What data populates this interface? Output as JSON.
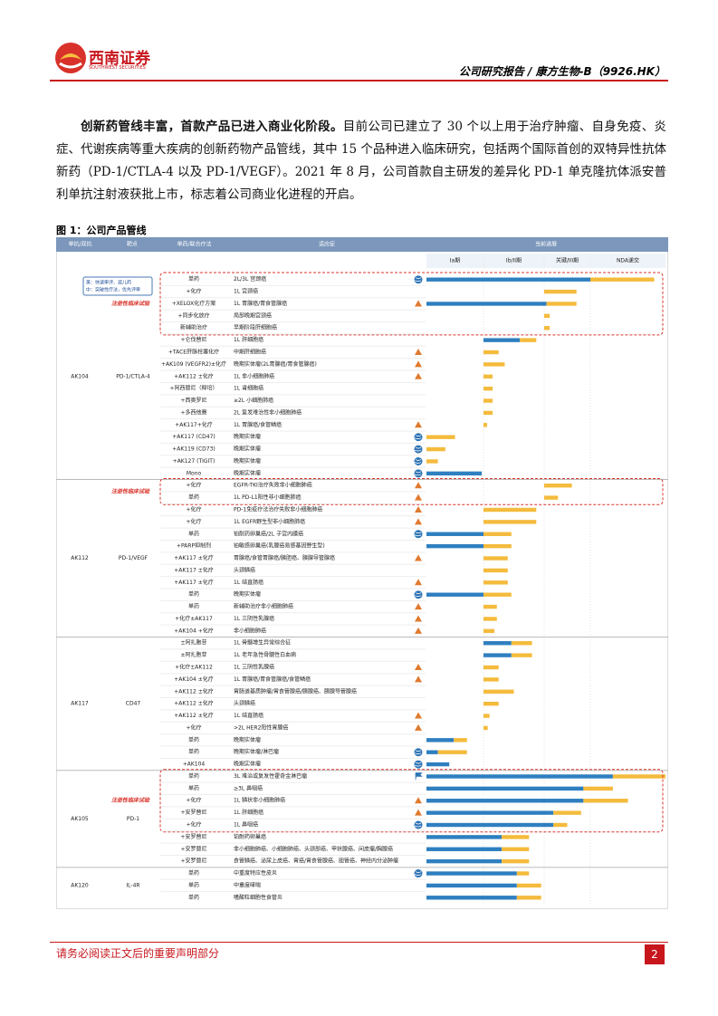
{
  "header": {
    "logo_cn": "西南证券",
    "logo_en": "SOUTHWEST SECURITIES",
    "report": "公司研究报告 / 康方生物-B（9926.HK）"
  },
  "intro": {
    "lead": "创新药管线丰富，首款产品已进入商业化阶段。",
    "text": "目前公司已建立了 30 个以上用于治疗肿瘤、自身免疫、炎症、代谢疾病等重大疾病的创新药物产品管线，其中 15 个品种进入临床研究，包括两个国际首创的双特异性抗体新药（PD-1/CTLA-4 以及 PD-1/VEGF）。2021 年 8 月，公司首款自主研发的差异化 PD-1 单克隆抗体派安普利单抗注射液获批上市，标志着公司商业化进程的开启。"
  },
  "figure": {
    "title": "图 1：公司产品管线",
    "columns": [
      "单抗/双抗",
      "靶点",
      "单药/联合疗法",
      "适应症",
      "当前进展"
    ],
    "phases": [
      "Ia期",
      "Ib/II期",
      "关键/III期",
      "NDA递交"
    ],
    "groups": [
      {
        "name": "AK104",
        "target": "PD-1/CTLA-4",
        "note": [
          "美：快速审评、孤儿药",
          "中：突破性疗法，优先评审"
        ],
        "registration_label": "注册性临床试验",
        "rows": [
          {
            "therapy": "单药",
            "indication": "2L/3L 宫颈癌",
            "icon": "globe",
            "registrational": true,
            "progress": [
              0,
              3,
              3.85
            ]
          },
          {
            "therapy": "+化疗",
            "indication": "1L 宫颈癌",
            "registrational": true,
            "progress": [
              2,
              2,
              2.7
            ]
          },
          {
            "therapy": "+XELOX化疗方案",
            "indication": "1L 胃腺癌/胃食管腺癌",
            "icon": "triangle",
            "registrational": true,
            "progress": [
              0,
              2.05,
              2.7
            ]
          },
          {
            "therapy": "+同步化放疗",
            "indication": "局部晚期宫颈癌",
            "registrational": true,
            "progress": [
              2,
              2,
              2.12
            ]
          },
          {
            "therapy": "新辅助治疗",
            "indication": "早期阶段肝细胞癌",
            "registrational": true,
            "progress": [
              2,
              2,
              2.12
            ]
          },
          {
            "therapy": "+仑伐替尼",
            "indication": "1L 肝细胞癌",
            "progress": [
              1,
              1.6,
              1.87
            ]
          },
          {
            "therapy": "+TACE肝脉栓塞化疗",
            "indication": "中期肝细胞癌",
            "icon": "triangle",
            "progress": [
              1,
              1,
              1.25
            ]
          },
          {
            "therapy": "+AK109 (VEGFR2)±化疗",
            "indication": "晚期实体瘤(2L胃腺癌/胃食管腺癌)",
            "icon": "triangle",
            "progress": [
              1,
              1,
              1.35
            ]
          },
          {
            "therapy": "+AK112 ±化疗",
            "indication": "1L 非小细胞肺癌",
            "icon": "triangle",
            "progress": [
              1,
              1,
              1.15
            ]
          },
          {
            "therapy": "+阿西替尼（释培）",
            "indication": "1L 肾细胞癌",
            "progress": [
              1,
              1,
              1.15
            ]
          },
          {
            "therapy": "+西奥罗尼",
            "indication": "≥2L 小细胞肺癌",
            "progress": [
              1,
              1,
              1.15
            ]
          },
          {
            "therapy": "+多西他赛",
            "indication": "2L 复发难治性非小细胞肺癌",
            "progress": [
              1,
              1,
              1.15
            ]
          },
          {
            "therapy": "+AK117+化疗",
            "indication": "1L 胃腺癌/食管鳞癌",
            "icon": "triangle",
            "progress": [
              1,
              1,
              1.06
            ]
          },
          {
            "therapy": "+AK117 (CD47)",
            "indication": "晚期实体瘤",
            "icon": "globe",
            "progress": [
              0,
              0,
              0.5
            ]
          },
          {
            "therapy": "+AK119 (CD73)",
            "indication": "晚期实体瘤",
            "icon": "globe",
            "progress": [
              0,
              0,
              0.33
            ]
          },
          {
            "therapy": "+AK127 (TIGIT)",
            "indication": "晚期实体瘤",
            "icon": "globe",
            "progress": [
              0,
              0,
              0.2
            ]
          },
          {
            "therapy": "Mono",
            "indication": "晚期实体瘤",
            "icon": "globe",
            "progress": [
              0,
              0.97,
              0.97
            ]
          }
        ]
      },
      {
        "name": "AK112",
        "target": "PD-1/VEGF",
        "registration_label": "注册性临床试验",
        "rows": [
          {
            "therapy": "+化疗",
            "indication": "EGFR-TKI治疗失败非小细胞肺癌",
            "icon": "triangle",
            "registrational": true,
            "progress": [
              2,
              2,
              2.6
            ]
          },
          {
            "therapy": "单药",
            "indication": "1L PD-L1阳性非小细胞肺癌",
            "icon": "triangle",
            "registrational": true,
            "progress": [
              2,
              2,
              2.3
            ]
          },
          {
            "therapy": "+化疗",
            "indication": "PD-1免疫疗法治疗失败非小细胞肺癌",
            "icon": "triangle",
            "progress": [
              1,
              1,
              1.87
            ]
          },
          {
            "therapy": "+化疗",
            "indication": "1L EGFR野生型非小细胞肺癌",
            "icon": "triangle",
            "progress": [
              1,
              1,
              1.87
            ]
          },
          {
            "therapy": "单药",
            "indication": "铂耐药卵巢癌/2L 子宫内膜癌",
            "icon": "globe",
            "progress": [
              0,
              1,
              1.46
            ]
          },
          {
            "therapy": "+PARP抑制剂",
            "indication": "铂敏感卵巢癌(乳腺癌易感基因野生型)",
            "progress": [
              0,
              1,
              1.46
            ]
          },
          {
            "therapy": "+AK117 ±化疗",
            "indication": "胃腺癌/食管胃腺癌/胰胆癌、胰腺导管腺癌",
            "icon": "triangle",
            "progress": [
              1,
              1,
              1.4
            ]
          },
          {
            "therapy": "+AK117 ±化疗",
            "indication": "头颈鳞癌",
            "progress": [
              1,
              1,
              1.4
            ]
          },
          {
            "therapy": "+AK117 ±化疗",
            "indication": "1L 结直肠癌",
            "icon": "triangle",
            "progress": [
              1,
              1,
              1.4
            ]
          },
          {
            "therapy": "单药",
            "indication": "晚期实体瘤",
            "icon": "globe",
            "progress": [
              0,
              1,
              1.46
            ]
          },
          {
            "therapy": "单药",
            "indication": "新辅助治疗非小细胞肺癌",
            "icon": "triangle",
            "progress": [
              1,
              1,
              1.22
            ]
          },
          {
            "therapy": "+化疗±AK117",
            "indication": "1L 三阴性乳腺癌",
            "icon": "triangle",
            "progress": [
              1,
              1,
              1.22
            ]
          },
          {
            "therapy": "+AK104 +化疗",
            "indication": "非小细胞肺癌",
            "icon": "triangle",
            "progress": [
              1,
              1,
              1.18
            ]
          }
        ]
      },
      {
        "name": "AK117",
        "target": "CD47",
        "rows": [
          {
            "therapy": "±阿扎胞苷",
            "indication": "1L 骨髓增生异常综合征",
            "progress": [
              1,
              1.46,
              1.8
            ]
          },
          {
            "therapy": "±阿扎胞苷",
            "indication": "1L 老年急性骨髓性白血病",
            "progress": [
              1,
              1.46,
              1.8
            ]
          },
          {
            "therapy": "+化疗±AK112",
            "indication": "1L 三阴性乳腺癌",
            "icon": "triangle",
            "progress": [
              1,
              1,
              1.25
            ]
          },
          {
            "therapy": "+AK104 ±化疗",
            "indication": "1L 胃腺癌/胃食管腺癌/食管鳞癌",
            "icon": "triangle",
            "progress": [
              1,
              1,
              1.25
            ]
          },
          {
            "therapy": "+AK112 ±化疗",
            "indication": "胃肠道基质肿瘤/胃食管腺癌/胰腺癌、胰腺导管腺癌",
            "progress": [
              1,
              1,
              1.5
            ]
          },
          {
            "therapy": "+AK112 ±化疗",
            "indication": "头颈鳞癌",
            "progress": [
              1,
              1,
              1.25
            ]
          },
          {
            "therapy": "+AK112 ±化疗",
            "indication": "1L 结直肠癌",
            "icon": "triangle",
            "progress": [
              1,
              1,
              1.1
            ]
          },
          {
            "therapy": "+化疗",
            "indication": ">2L HER2阳性胃腺癌",
            "icon": "triangle",
            "progress": [
              1,
              1,
              1.07
            ]
          },
          {
            "therapy": "单药",
            "indication": "晚期实体瘤",
            "progress": [
              0,
              0.48,
              0.71
            ]
          },
          {
            "therapy": "单药",
            "indication": "晚期实体瘤/淋巴瘤",
            "icon": "globe",
            "progress": [
              0,
              0.2,
              0.71
            ]
          },
          {
            "therapy": "+AK104",
            "indication": "晚期实体瘤",
            "icon": "globe",
            "progress": [
              0,
              0.4,
              0.4
            ]
          }
        ]
      },
      {
        "name": "AK105",
        "target": "PD-1",
        "registration_label": "注册性临床试验",
        "rows": [
          {
            "therapy": "单药",
            "indication": "3L 难治或复发性霍奇金淋巴瘤",
            "icon": "flag",
            "registrational": true,
            "progress": [
              0,
              3.3,
              4
            ]
          },
          {
            "therapy": "单药",
            "indication": "≥3L 鼻咽癌",
            "registrational": true,
            "progress": [
              0,
              2.85,
              3.3
            ]
          },
          {
            "therapy": "+化疗",
            "indication": "1L 鳞状非小细胞肺癌",
            "icon": "triangle",
            "registrational": true,
            "progress": [
              0,
              2.85,
              3.5
            ]
          },
          {
            "therapy": "+安罗替尼",
            "indication": "1L 肝细胞癌",
            "icon": "triangle",
            "registrational": true,
            "progress": [
              0,
              2.2,
              2.8
            ]
          },
          {
            "therapy": "+化疗",
            "indication": "1L 鼻咽癌",
            "icon": "globe",
            "registrational": true,
            "progress": [
              0,
              2.2,
              2.5
            ]
          },
          {
            "therapy": "+安罗替尼",
            "indication": "铂耐药卵巢癌",
            "progress": [
              0,
              1.3,
              1.75
            ]
          },
          {
            "therapy": "+安罗替尼",
            "indication": "非小细胞肺癌、小细胞肺癌、头颈部癌、甲状腺癌、间皮瘤/胸腺癌",
            "progress": [
              0,
              1.3,
              1.75
            ]
          },
          {
            "therapy": "+安罗替尼",
            "indication": "食管鳞癌、泌尿上皮癌、胃癌/胃食管腺癌、胆管癌、神经内分泌肿瘤",
            "progress": [
              0,
              1.3,
              1.75
            ]
          }
        ]
      },
      {
        "name": "AK120",
        "target": "IL-4R",
        "rows": [
          {
            "therapy": "单药",
            "indication": "中重度特应性皮炎",
            "icon": "globe",
            "progress": [
              0,
              1.55,
              1.75
            ]
          },
          {
            "therapy": "单药",
            "indication": "中重度哮喘",
            "progress": [
              0,
              1.55,
              1.95
            ]
          },
          {
            "therapy": "单药",
            "indication": "嗜酸粒细胞性食管炎",
            "progress": [
              0,
              1.55,
              1.95
            ]
          }
        ]
      }
    ]
  },
  "footer": {
    "disclaimer": "请务必阅读正文后的重要声明部分",
    "page": "2"
  }
}
